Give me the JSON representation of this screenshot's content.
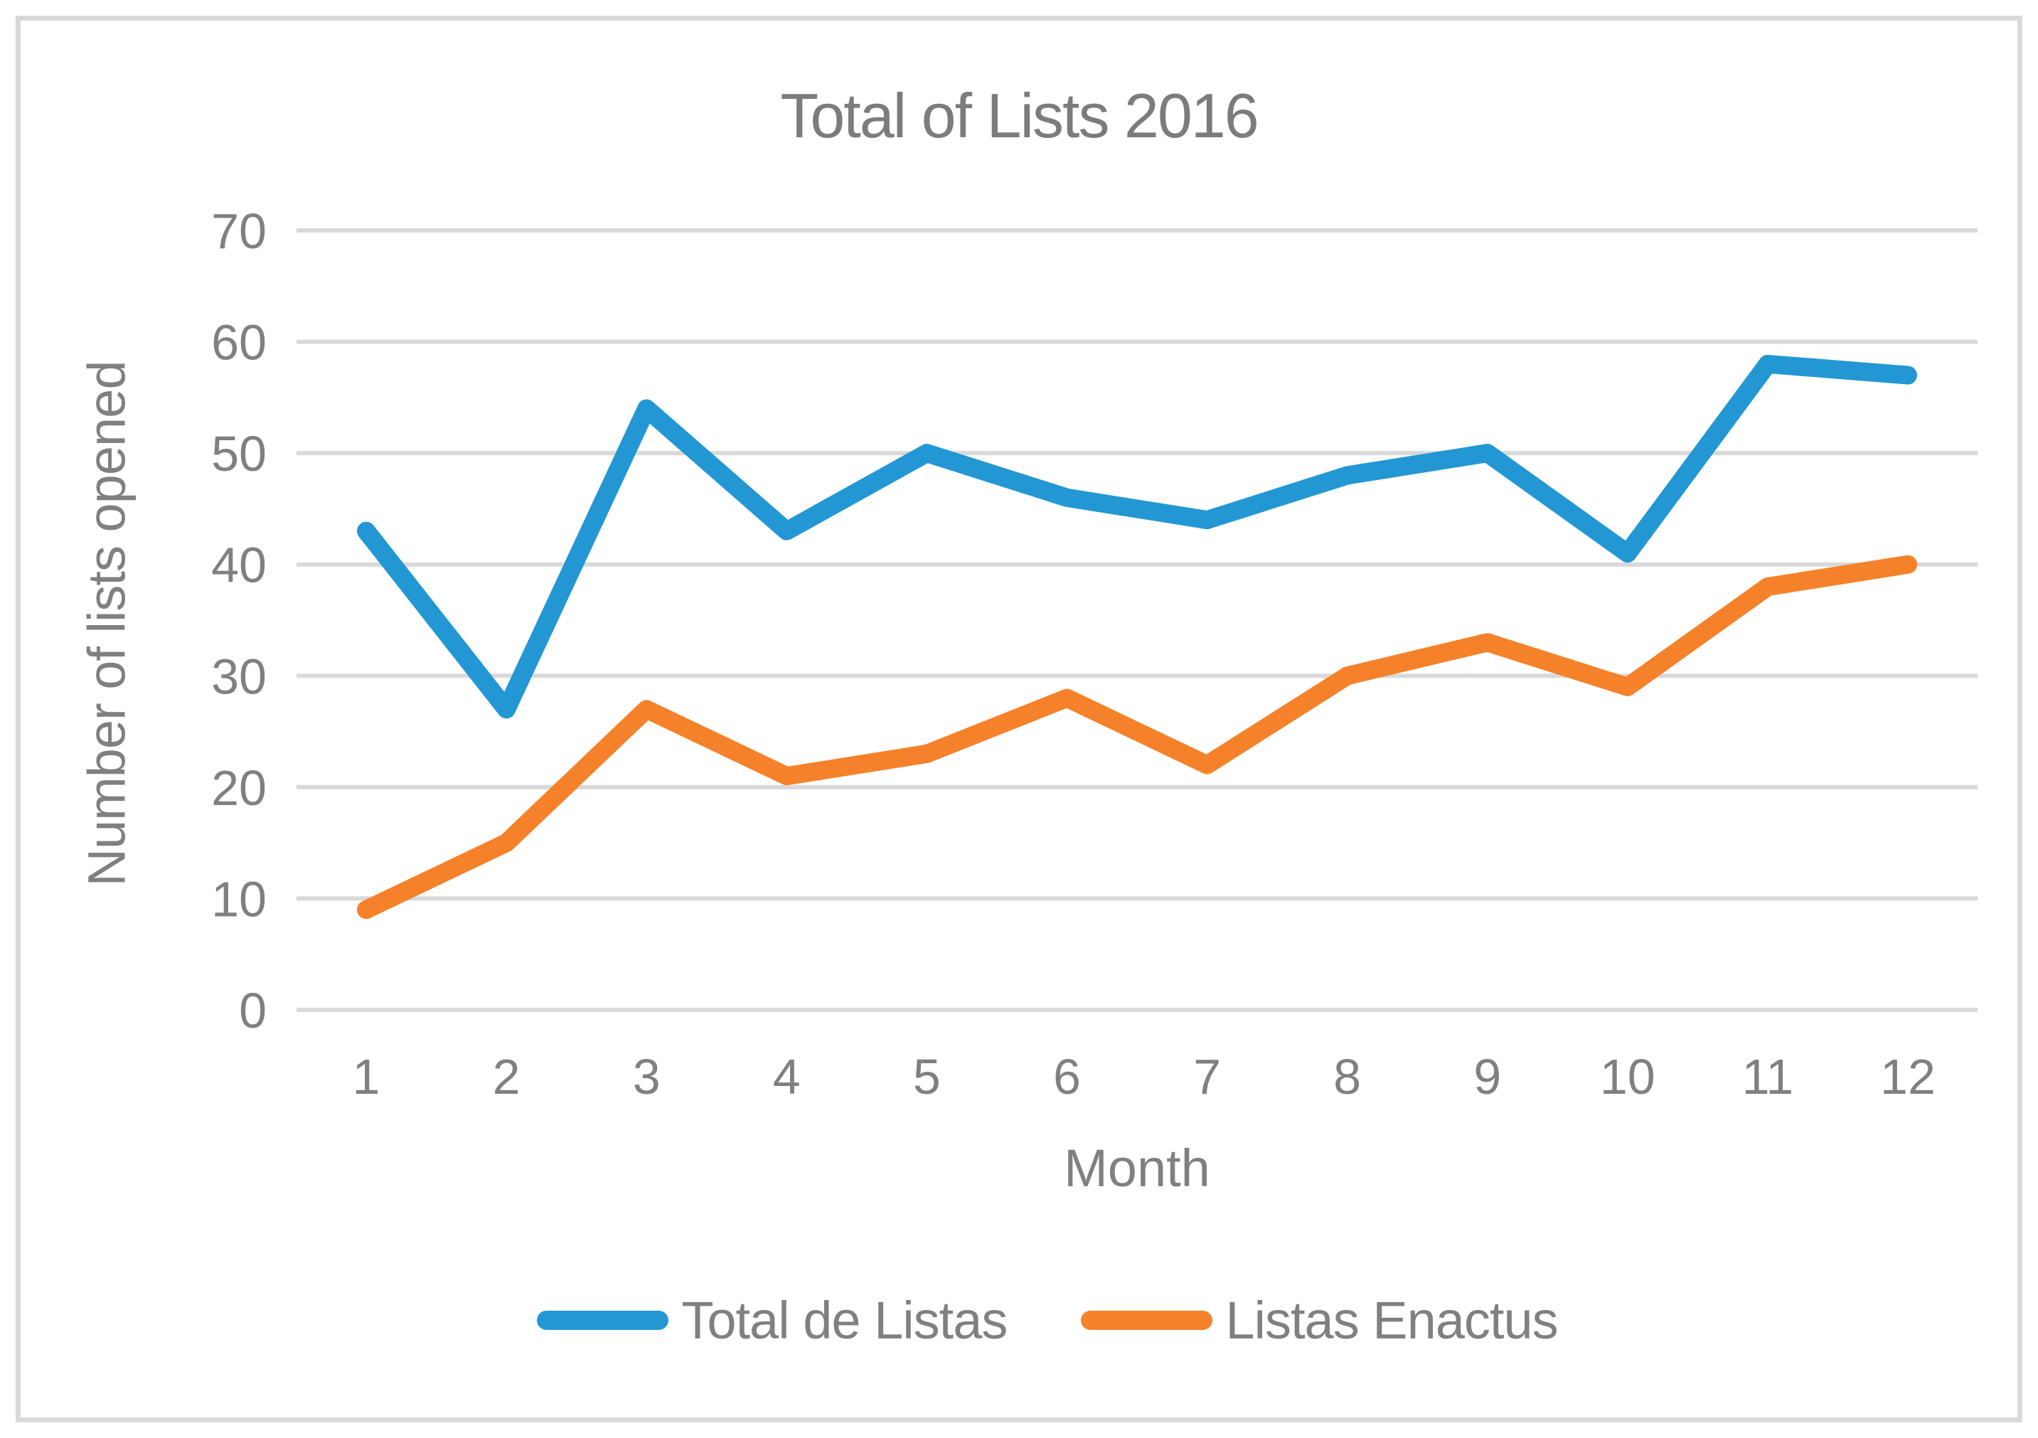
{
  "chart_data": {
    "type": "line",
    "title": "Total of Lists 2016",
    "xlabel": "Month",
    "ylabel": "Number of lists opened",
    "categories": [
      "1",
      "2",
      "3",
      "4",
      "5",
      "6",
      "7",
      "8",
      "9",
      "10",
      "11",
      "12"
    ],
    "y_ticks": [
      0,
      10,
      20,
      30,
      40,
      50,
      60,
      70
    ],
    "ylim": [
      0,
      70
    ],
    "grid": "horizontal",
    "legend_position": "bottom",
    "series": [
      {
        "name": "Total de Listas",
        "color": "#2397d4",
        "values": [
          43,
          27,
          54,
          43,
          50,
          46,
          44,
          48,
          50,
          41,
          58,
          57
        ]
      },
      {
        "name": "Listas Enactus",
        "color": "#f5822a",
        "values": [
          9,
          15,
          27,
          21,
          23,
          28,
          22,
          30,
          33,
          29,
          38,
          40
        ]
      }
    ],
    "colors": {
      "gridline": "#d9d9d9",
      "axis_text": "#808080",
      "title_text": "#7c7c7c",
      "frame_border": "#d9d9d9",
      "background": "#ffffff"
    }
  }
}
